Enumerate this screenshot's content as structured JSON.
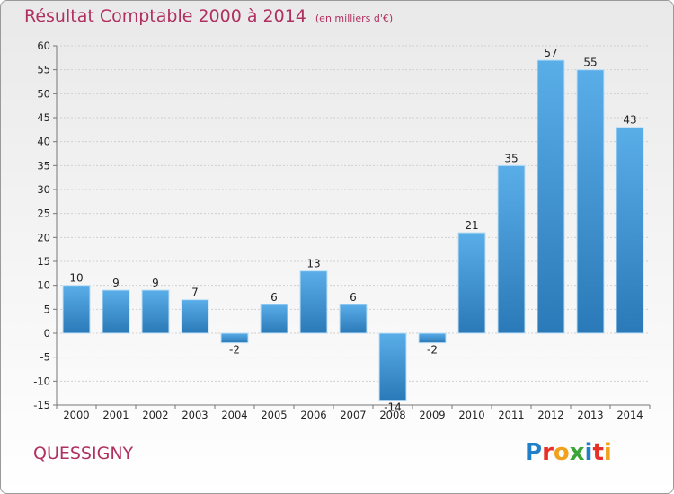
{
  "header": {
    "title": "Résultat Comptable 2000 à 2014",
    "subtitle": "(en milliers d'€)"
  },
  "footer": {
    "commune": "QUESSIGNY",
    "logo_text": "Proxiti",
    "logo_colors": [
      "#1f7fc8",
      "#e8302a",
      "#f2a11c",
      "#3aa635",
      "#1f7fc8",
      "#e8302a",
      "#f2a11c"
    ]
  },
  "chart_data": {
    "type": "bar",
    "categories": [
      "2000",
      "2001",
      "2002",
      "2003",
      "2004",
      "2005",
      "2006",
      "2007",
      "2008",
      "2009",
      "2010",
      "2011",
      "2012",
      "2013",
      "2014"
    ],
    "values": [
      10,
      9,
      9,
      7,
      -2,
      6,
      13,
      6,
      -14,
      -2,
      21,
      35,
      57,
      55,
      43
    ],
    "data_labels": [
      "10",
      "9",
      "9",
      "7",
      "-2",
      "6",
      "13",
      "6",
      "-14",
      "-2",
      "21",
      "35",
      "57",
      "55",
      "43"
    ],
    "yticks": [
      -15,
      -10,
      -5,
      0,
      5,
      10,
      15,
      20,
      25,
      30,
      35,
      40,
      45,
      50,
      55,
      60
    ],
    "ylim": [
      -15,
      60
    ],
    "grid": true,
    "bar_color_top": "#5aaee8",
    "bar_color_bottom": "#2a79b8"
  }
}
